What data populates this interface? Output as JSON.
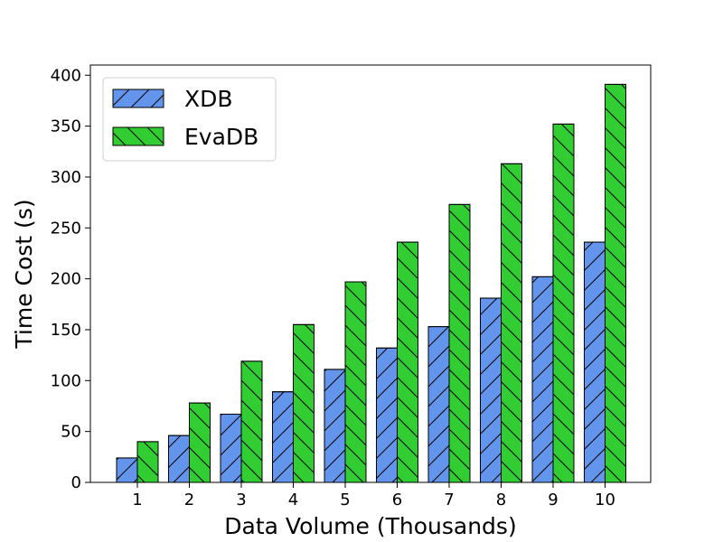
{
  "chart_data": {
    "type": "bar",
    "title": "",
    "xlabel": "Data Volume (Thousands)",
    "ylabel": "Time Cost (s)",
    "categories": [
      "1",
      "2",
      "3",
      "4",
      "5",
      "6",
      "7",
      "8",
      "9",
      "10"
    ],
    "ylim": [
      0,
      410
    ],
    "yticks": [
      "0",
      "50",
      "100",
      "150",
      "200",
      "250",
      "300",
      "350",
      "400"
    ],
    "grid": false,
    "legend_position": "top-left",
    "series": [
      {
        "name": "XDB",
        "color": "#6495ED",
        "hatch": "forward-slash",
        "values": [
          24,
          46,
          67,
          89,
          111,
          132,
          153,
          181,
          202,
          236
        ]
      },
      {
        "name": "EvaDB",
        "color": "#32CD32",
        "hatch": "back-slash",
        "values": [
          40,
          78,
          119,
          155,
          197,
          236,
          273,
          313,
          352,
          391
        ]
      }
    ]
  }
}
